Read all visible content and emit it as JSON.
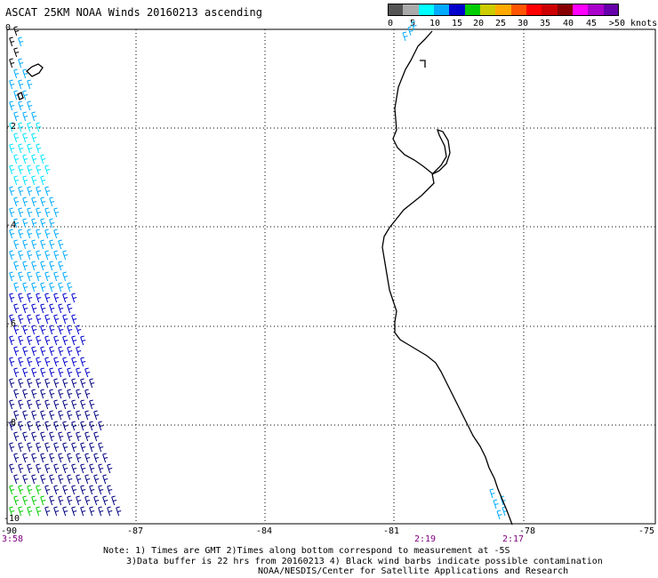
{
  "title": "ASCAT 25KM NOAA Winds 20160213 ascending",
  "legend": {
    "colors": [
      "#555555",
      "#aaaaaa",
      "#00ffff",
      "#00aaff",
      "#0000cc",
      "#00cc00",
      "#cccc00",
      "#ffaa00",
      "#ff5500",
      "#ff0000",
      "#cc0000",
      "#880000",
      "#ff00ff",
      "#aa00cc",
      "#6600aa"
    ],
    "labels": [
      "0",
      "5",
      "10",
      "15",
      "20",
      "25",
      "30",
      "35",
      "40",
      "45",
      ">50 knots"
    ]
  },
  "map": {
    "lat_labels": [
      "0",
      "-2",
      "-4",
      "-6",
      "-8",
      "-10"
    ],
    "lon_labels": [
      "-90",
      "-87",
      "-84",
      "-81",
      "-78",
      "-75"
    ],
    "time_labels": [
      "3:58",
      "2:19",
      "2:17"
    ],
    "coast_color": "#000000",
    "grid_color": "#000000",
    "barb_colors": {
      "cyan": "#00e5ff",
      "lightblue": "#00aaff",
      "blue": "#0000cc",
      "navy": "#000080",
      "green": "#00cc00",
      "black": "#000000"
    }
  },
  "notes": {
    "line1": "Note: 1) Times are GMT 2)Times along bottom correspond to measurement at -5S",
    "line2": "3)Data buffer is 22 hrs from 20160213 4) Black wind barbs indicate possible contamination",
    "line3": "NOAA/NESDIS/Center for Satellite Applications and Research"
  }
}
